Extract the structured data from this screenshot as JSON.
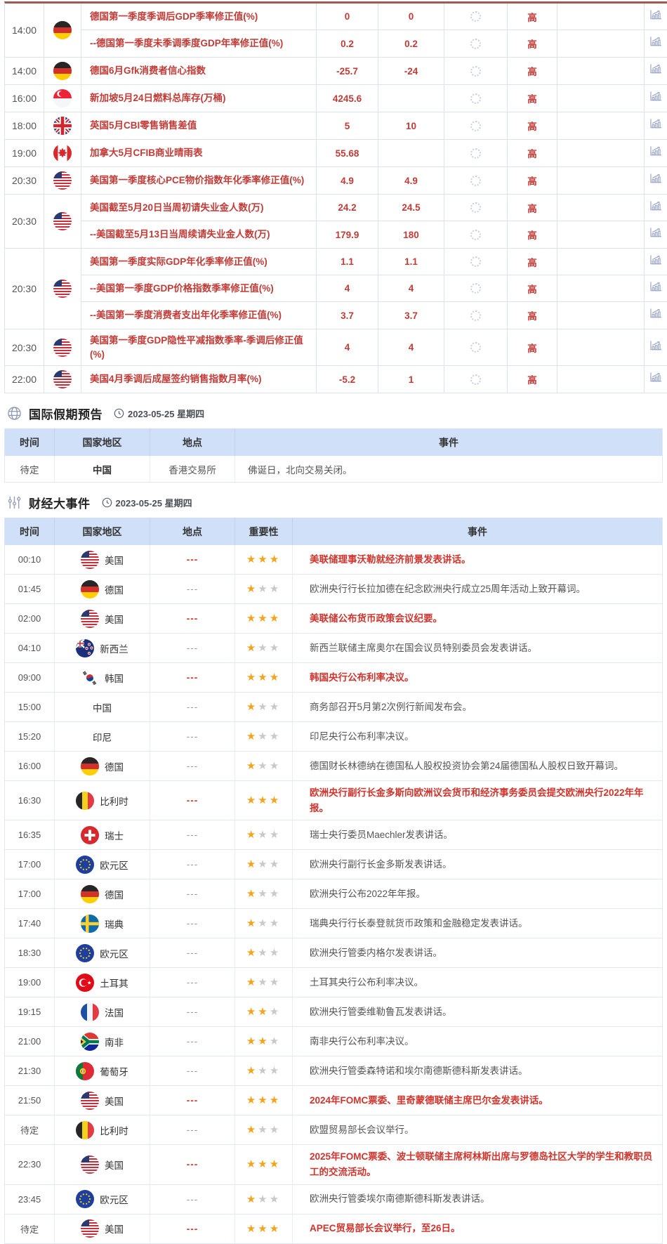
{
  "economic": {
    "importance_label": "高",
    "groups": [
      {
        "time": "14:00",
        "flag": "germany",
        "events": [
          {
            "name": "德国第一季度季调后GDP季率修正值(%)",
            "previous": "0",
            "forecast": "0"
          },
          {
            "name": "--德国第一季度未季调季度GDP年率修正值(%)",
            "previous": "0.2",
            "forecast": "0.2"
          }
        ]
      },
      {
        "time": "14:00",
        "flag": "germany",
        "events": [
          {
            "name": "德国6月Gfk消费者信心指数",
            "previous": "-25.7",
            "forecast": "-24"
          }
        ]
      },
      {
        "time": "16:00",
        "flag": "singapore",
        "events": [
          {
            "name": "新加坡5月24日燃料总库存(万桶)",
            "previous": "4245.6",
            "forecast": ""
          }
        ]
      },
      {
        "time": "18:00",
        "flag": "uk",
        "events": [
          {
            "name": "英国5月CBI零售销售差值",
            "previous": "5",
            "forecast": "10"
          }
        ]
      },
      {
        "time": "19:00",
        "flag": "canada",
        "events": [
          {
            "name": "加拿大5月CFIB商业晴雨表",
            "previous": "55.68",
            "forecast": ""
          }
        ]
      },
      {
        "time": "20:30",
        "flag": "usa",
        "events": [
          {
            "name": "美国第一季度核心PCE物价指数年化季率修正值(%)",
            "previous": "4.9",
            "forecast": "4.9"
          }
        ]
      },
      {
        "time": "20:30",
        "flag": "usa",
        "events": [
          {
            "name": "美国截至5月20日当周初请失业金人数(万)",
            "previous": "24.2",
            "forecast": "24.5"
          },
          {
            "name": "--美国截至5月13日当周续请失业金人数(万)",
            "previous": "179.9",
            "forecast": "180"
          }
        ]
      },
      {
        "time": "20:30",
        "flag": "usa",
        "events": [
          {
            "name": "美国第一季度实际GDP年化季率修正值(%)",
            "previous": "1.1",
            "forecast": "1.1"
          },
          {
            "name": "--美国第一季度GDP价格指数季率修正值(%)",
            "previous": "4",
            "forecast": "4"
          },
          {
            "name": "--美国第一季度消费者支出年化季率修正值(%)",
            "previous": "3.7",
            "forecast": "3.7"
          }
        ]
      },
      {
        "time": "20:30",
        "flag": "usa",
        "events": [
          {
            "name": "美国第一季度GDP隐性平减指数季率-季调后修正值(%)",
            "previous": "4",
            "forecast": "4"
          }
        ]
      },
      {
        "time": "22:00",
        "flag": "usa",
        "events": [
          {
            "name": "美国4月季调后成屋签约销售指数月率(%)",
            "previous": "-5.2",
            "forecast": "1"
          }
        ]
      }
    ]
  },
  "holiday": {
    "title": "国际假期预告",
    "date": "2023-05-25 星期四",
    "headers": [
      "时间",
      "国家地区",
      "地点",
      "事件"
    ],
    "rows": [
      {
        "time": "待定",
        "country": "中国",
        "location": "香港交易所",
        "event": "佛诞日，北向交易关闭。"
      }
    ]
  },
  "events": {
    "title": "财经大事件",
    "date": "2023-05-25 星期四",
    "headers": [
      "时间",
      "国家地区",
      "地点",
      "重要性",
      "事件"
    ],
    "rows": [
      {
        "time": "00:10",
        "country": "美国",
        "flag": "usa",
        "location": "---",
        "stars": 3,
        "highlight": true,
        "event": "美联储理事沃勒就经济前景发表讲话。"
      },
      {
        "time": "01:45",
        "country": "德国",
        "flag": "germany",
        "location": "---",
        "stars": 1,
        "highlight": false,
        "event": "欧洲央行行长拉加德在纪念欧洲央行成立25周年活动上致开幕词。"
      },
      {
        "time": "02:00",
        "country": "美国",
        "flag": "usa",
        "location": "---",
        "stars": 3,
        "highlight": true,
        "event": "美联储公布货币政策会议纪要。"
      },
      {
        "time": "04:10",
        "country": "新西兰",
        "flag": "new-zealand",
        "location": "---",
        "stars": 1,
        "highlight": false,
        "event": "新西兰联储主席奥尔在国会议员特别委员会发表讲话。"
      },
      {
        "time": "09:00",
        "country": "韩国",
        "flag": "south-korea",
        "location": "---",
        "stars": 3,
        "highlight": true,
        "event": "韩国央行公布利率决议。"
      },
      {
        "time": "15:00",
        "country": "中国",
        "flag": null,
        "location": "---",
        "stars": 1,
        "highlight": false,
        "event": "商务部召开5月第2次例行新闻发布会。"
      },
      {
        "time": "15:20",
        "country": "印尼",
        "flag": null,
        "location": "---",
        "stars": 1,
        "highlight": false,
        "event": "印尼央行公布利率决议。"
      },
      {
        "time": "16:00",
        "country": "德国",
        "flag": "germany",
        "location": "---",
        "stars": 1,
        "highlight": false,
        "event": "德国财长林德纳在德国私人股权投资协会第24届德国私人股权日致开幕词。"
      },
      {
        "time": "16:30",
        "country": "比利时",
        "flag": "belgium",
        "location": "---",
        "stars": 3,
        "highlight": true,
        "event": "欧洲央行副行长金多斯向欧洲议会货币和经济事务委员会提交欧洲央行2022年年报。"
      },
      {
        "time": "16:35",
        "country": "瑞士",
        "flag": "switzerland",
        "location": "---",
        "stars": 1,
        "highlight": false,
        "event": "瑞士央行委员Maechler发表讲话。"
      },
      {
        "time": "17:00",
        "country": "欧元区",
        "flag": "eurozone",
        "location": "---",
        "stars": 1,
        "highlight": false,
        "event": "欧洲央行副行长金多斯发表讲话。"
      },
      {
        "time": "17:00",
        "country": "德国",
        "flag": "germany",
        "location": "---",
        "stars": 1,
        "highlight": false,
        "event": "欧洲央行公布2022年年报。"
      },
      {
        "time": "17:40",
        "country": "瑞典",
        "flag": "sweden",
        "location": "---",
        "stars": 1,
        "highlight": false,
        "event": "瑞典央行行长泰登就货币政策和金融稳定发表讲话。"
      },
      {
        "time": "18:30",
        "country": "欧元区",
        "flag": "eurozone",
        "location": "---",
        "stars": 1,
        "highlight": false,
        "event": "欧洲央行管委内格尔发表讲话。"
      },
      {
        "time": "19:00",
        "country": "土耳其",
        "flag": "turkey",
        "location": "---",
        "stars": 1,
        "highlight": false,
        "event": "土耳其央行公布利率决议。"
      },
      {
        "time": "19:15",
        "country": "法国",
        "flag": "france",
        "location": "---",
        "stars": 2,
        "highlight": false,
        "event": "欧洲央行管委维勒鲁瓦发表讲话。"
      },
      {
        "time": "21:00",
        "country": "南非",
        "flag": "south-africa",
        "location": "---",
        "stars": 2,
        "highlight": false,
        "event": "南非央行公布利率决议。"
      },
      {
        "time": "21:30",
        "country": "葡萄牙",
        "flag": "portugal",
        "location": "---",
        "stars": 1,
        "highlight": false,
        "event": "欧洲央行管委森特诺和埃尔南德斯德科斯发表讲话。"
      },
      {
        "time": "21:50",
        "country": "美国",
        "flag": "usa",
        "location": "---",
        "stars": 3,
        "highlight": true,
        "event": "2024年FOMC票委、里奇蒙德联储主席巴尔金发表讲话。"
      },
      {
        "time": "待定",
        "country": "比利时",
        "flag": "belgium",
        "location": "---",
        "stars": 1,
        "highlight": false,
        "event": "欧盟贸易部长会议举行。"
      },
      {
        "time": "22:30",
        "country": "美国",
        "flag": "usa",
        "location": "---",
        "stars": 3,
        "highlight": true,
        "event": "2025年FOMC票委、波士顿联储主席柯林斯出席与罗德岛社区大学的学生和教职员工的交流活动。"
      },
      {
        "time": "23:45",
        "country": "欧元区",
        "flag": "eurozone",
        "location": "---",
        "stars": 1,
        "highlight": false,
        "event": "欧洲央行管委埃尔南德斯德科斯发表讲话。"
      },
      {
        "time": "待定",
        "country": "美国",
        "flag": "usa",
        "location": "---",
        "stars": 3,
        "highlight": true,
        "event": "APEC贸易部长会议举行，至26日。"
      }
    ]
  }
}
